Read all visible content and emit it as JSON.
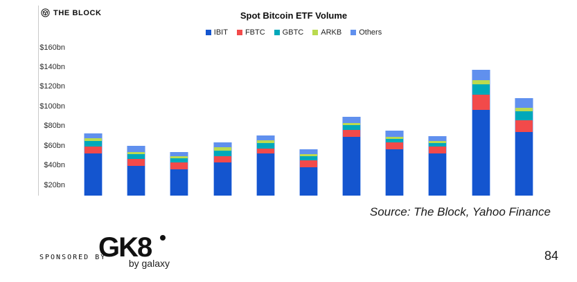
{
  "brand": {
    "name": "THE BLOCK"
  },
  "chart_data": {
    "type": "bar",
    "variant": "stacked",
    "title": "Spot Bitcoin ETF Volume",
    "unit": "$bn",
    "y_ticks": [
      "$160bn",
      "$140bn",
      "$120bn",
      "$100bn",
      "$80bn",
      "$60bn",
      "$40bn",
      "$20bn"
    ],
    "y_tick_values": [
      160,
      140,
      120,
      100,
      80,
      60,
      40,
      20
    ],
    "ylim_visible": [
      10,
      170
    ],
    "x_axis_labels_visible": false,
    "grid": false,
    "legend_position": "top",
    "categories": [
      "",
      "",
      "",
      "",
      "",
      "",
      "",
      "",
      "",
      "",
      ""
    ],
    "series": [
      {
        "name": "IBIT",
        "color": "#1455cf",
        "values": [
          52.5,
          40,
          36.5,
          43.5,
          52.5,
          38.5,
          69,
          57,
          52.5,
          97,
          74.5
        ]
      },
      {
        "name": "FBTC",
        "color": "#f24a4a",
        "values": [
          7,
          7,
          7,
          6.5,
          5,
          7,
          7.5,
          6.5,
          7,
          15,
          12
        ]
      },
      {
        "name": "GBTC",
        "color": "#00a8ba",
        "values": [
          5.5,
          5,
          4,
          5.5,
          5.5,
          4,
          5,
          4,
          3.5,
          11,
          8.5
        ]
      },
      {
        "name": "ARKB",
        "color": "#bada4f",
        "values": [
          3,
          2,
          2,
          3,
          3,
          2,
          2,
          2,
          2,
          4,
          4
        ]
      },
      {
        "name": "Others",
        "color": "#6090ee",
        "values": [
          5,
          6,
          4.5,
          5,
          5,
          5,
          6,
          6,
          5,
          10.5,
          9.5
        ]
      }
    ],
    "approx_totals": [
      73,
      60,
      54,
      63.5,
      71,
      56.5,
      89.5,
      75.5,
      70,
      137.5,
      108.5
    ]
  },
  "source_text": "Source: The Block, Yahoo Finance",
  "footer": {
    "sponsored_by_label": "SPONSORED BY",
    "sponsor_name": "GK8",
    "sponsor_tagline": "by galaxy",
    "page_number": "84"
  }
}
